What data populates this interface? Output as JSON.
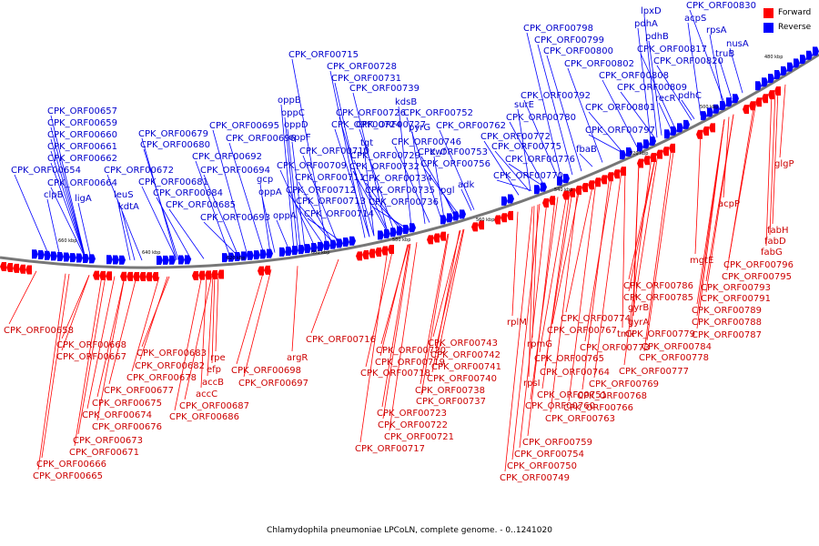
{
  "legend": {
    "forward": {
      "label": "Forward",
      "color": "#ff0000"
    },
    "reverse": {
      "label": "Reverse",
      "color": "#0000ff"
    }
  },
  "caption": "Chlamydophila pneumoniae LPCoLN, complete genome. - 0..1241020",
  "ticks": [
    "660 kbp",
    "640 kbp",
    "620 kbp",
    "600 kbp",
    "580 kbp",
    "560 kbp",
    "540 kbp",
    "520 kbp",
    "500 kbp",
    "480 kbp"
  ],
  "reverse_labels": [
    "CPK_ORF00657",
    "CPK_ORF00659",
    "CPK_ORF00660",
    "CPK_ORF00661",
    "CPK_ORF00662",
    "CPK_ORF00654",
    "CPK_ORF00664",
    "clpB",
    "ligA",
    "leuS",
    "kdtA",
    "CPK_ORF00679",
    "CPK_ORF00680",
    "CPK_ORF00672",
    "CPK_ORF00681",
    "CPK_ORF00684",
    "CPK_ORF00685",
    "CPK_ORF00692",
    "CPK_ORF00694",
    "CPK_ORF00693",
    "CPK_ORF00695",
    "CPK_ORF00696",
    "gcp",
    "oppA",
    "oppA",
    "oppB",
    "oppC",
    "oppD",
    "oppF",
    "CPK_ORF00710",
    "CPK_ORF00709",
    "CPK_ORF00711",
    "CPK_ORF00712",
    "CPK_ORF00713",
    "CPK_ORF00714",
    "CPK_ORF00715",
    "CPK_ORF00728",
    "CPK_ORF00731",
    "CPK_ORF00739",
    "CPK_ORF00724",
    "CPK_ORF00726",
    "CPK_ORF00727",
    "kdsB",
    "tgt",
    "CPK_ORF00729",
    "CPK_ORF00732",
    "CPK_ORF00734",
    "CPK_ORF00735",
    "CPK_ORF00736",
    "pyrG",
    "CPK_ORF00746",
    "CPK_ORF00752",
    "CPK_ORF00753",
    "zwf",
    "CPK_ORF00756",
    "pgl",
    "adk",
    "CPK_ORF00762",
    "CPK_ORF00772",
    "surE",
    "CPK_ORF00775",
    "CPK_ORF00776",
    "CPK_ORF00770",
    "CPK_ORF00780",
    "CPK_ORF00792",
    "fbaB",
    "CPK_ORF00797",
    "CPK_ORF00801",
    "CPK_ORF00798",
    "CPK_ORF00799",
    "CPK_ORF00800",
    "CPK_ORF00802",
    "lpxD",
    "pdhA",
    "pdhB",
    "CPK_ORF00808",
    "CPK_ORF00809",
    "recR",
    "pdhC",
    "CPK_ORF00817",
    "CPK_ORF00820",
    "CPK_ORF00830",
    "acpS",
    "rpsA",
    "truB",
    "nusA"
  ],
  "forward_labels": [
    "CPK_ORF00658",
    "CPK_ORF00668",
    "CPK_ORF00667",
    "CPK_ORF00683",
    "CPK_ORF00682",
    "CPK_ORF00678",
    "CPK_ORF00677",
    "CPK_ORF00675",
    "CPK_ORF00674",
    "CPK_ORF00676",
    "CPK_ORF00673",
    "CPK_ORF00671",
    "CPK_ORF00666",
    "CPK_ORF00665",
    "rpe",
    "efp",
    "accB",
    "accC",
    "CPK_ORF00687",
    "CPK_ORF00686",
    "CPK_ORF00698",
    "CPK_ORF00697",
    "argR",
    "CPK_ORF00716",
    "CPK_ORF00720",
    "CPK_ORF00719",
    "CPK_ORF00718",
    "CPK_ORF00723",
    "CPK_ORF00722",
    "CPK_ORF00721",
    "CPK_ORF00717",
    "CPK_ORF00743",
    "CPK_ORF00742",
    "CPK_ORF00741",
    "CPK_ORF00740",
    "CPK_ORF00738",
    "CPK_ORF00737",
    "rplM",
    "rpmG",
    "rpsI",
    "CPK_ORF00751",
    "CPK_ORF00754",
    "CPK_ORF00750",
    "CPK_ORF00749",
    "CPK_ORF00759",
    "CPK_ORF00767",
    "CPK_ORF00765",
    "CPK_ORF00764",
    "CPK_ORF00760",
    "CPK_ORF00763",
    "CPK_ORF00766",
    "CPK_ORF00768",
    "CPK_ORF00769",
    "CPK_ORF00774",
    "CPK_ORF00773",
    "tmk",
    "gyrB",
    "gyrA",
    "CPK_ORF00779",
    "CPK_ORF00778",
    "CPK_ORF00777",
    "CPK_ORF00786",
    "CPK_ORF00785",
    "CPK_ORF00784",
    "CPK_ORF00789",
    "CPK_ORF00788",
    "CPK_ORF00787",
    "CPK_ORF00791",
    "CPK_ORF00793",
    "CPK_ORF00795",
    "CPK_ORF00796",
    "mgtE",
    "fabG",
    "fabD",
    "fabH",
    "acpP",
    "glgP"
  ]
}
